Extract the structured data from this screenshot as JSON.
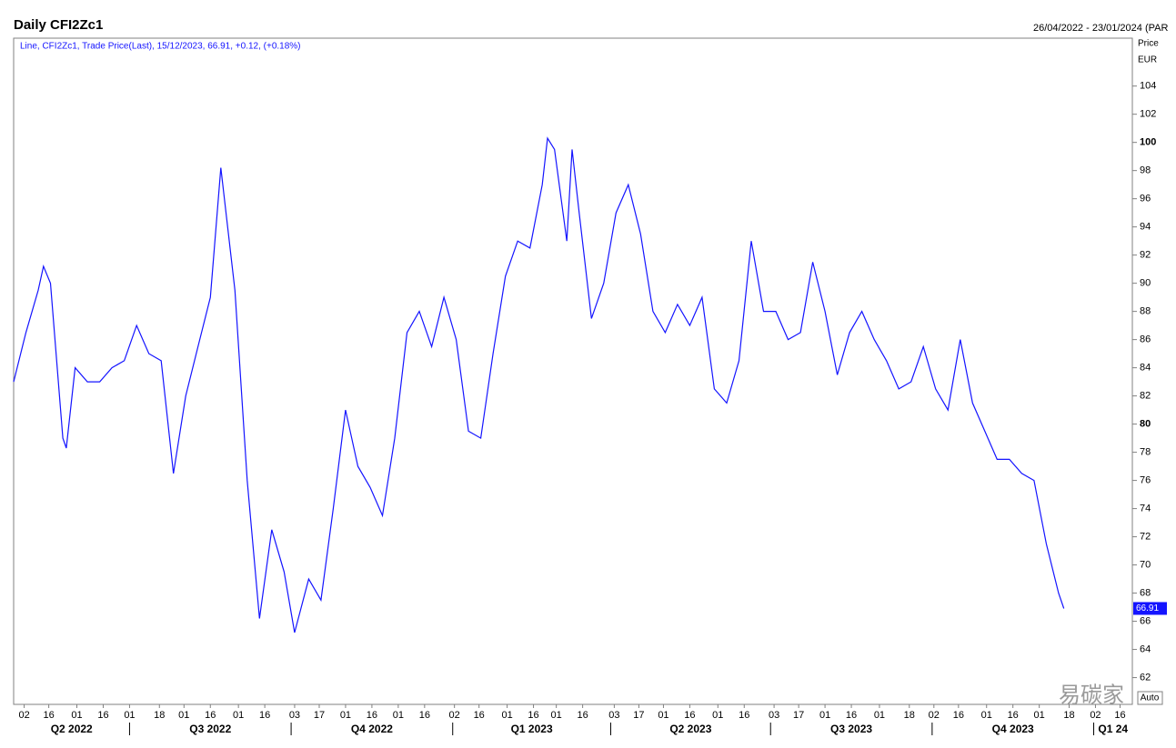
{
  "chart_data": {
    "type": "line",
    "title": "Daily CFI2Zc1",
    "date_range": "26/04/2022 - 23/01/2024 (PAR",
    "legend_text": "Line, CFI2Zc1, Trade Price(Last), 15/12/2023, 66.91, +0.12, (+0.18%)",
    "y_axis_label": "Price",
    "y_axis_unit": "EUR",
    "scale_mode": "Auto",
    "watermark": "易碳家",
    "last_value": 66.91,
    "x": [
      "2022-04-26",
      "2022-05-03",
      "2022-05-10",
      "2022-05-13",
      "2022-05-17",
      "2022-05-24",
      "2022-05-26",
      "2022-05-31",
      "2022-06-07",
      "2022-06-14",
      "2022-06-21",
      "2022-06-28",
      "2022-07-05",
      "2022-07-12",
      "2022-07-19",
      "2022-07-26",
      "2022-08-02",
      "2022-08-09",
      "2022-08-16",
      "2022-08-22",
      "2022-08-30",
      "2022-09-06",
      "2022-09-13",
      "2022-09-20",
      "2022-09-27",
      "2022-10-03",
      "2022-10-11",
      "2022-10-18",
      "2022-10-25",
      "2022-11-01",
      "2022-11-08",
      "2022-11-15",
      "2022-11-22",
      "2022-11-29",
      "2022-12-06",
      "2022-12-13",
      "2022-12-20",
      "2022-12-27",
      "2023-01-03",
      "2023-01-10",
      "2023-01-17",
      "2023-01-24",
      "2023-01-31",
      "2023-02-07",
      "2023-02-14",
      "2023-02-21",
      "2023-02-24",
      "2023-02-28",
      "2023-03-07",
      "2023-03-10",
      "2023-03-14",
      "2023-03-21",
      "2023-03-28",
      "2023-04-04",
      "2023-04-11",
      "2023-04-18",
      "2023-04-25",
      "2023-05-02",
      "2023-05-09",
      "2023-05-16",
      "2023-05-23",
      "2023-05-30",
      "2023-06-06",
      "2023-06-13",
      "2023-06-20",
      "2023-06-27",
      "2023-07-04",
      "2023-07-11",
      "2023-07-18",
      "2023-07-25",
      "2023-08-01",
      "2023-08-08",
      "2023-08-15",
      "2023-08-22",
      "2023-08-29",
      "2023-09-05",
      "2023-09-12",
      "2023-09-19",
      "2023-09-26",
      "2023-10-03",
      "2023-10-10",
      "2023-10-17",
      "2023-10-24",
      "2023-10-31",
      "2023-11-07",
      "2023-11-14",
      "2023-11-21",
      "2023-11-28",
      "2023-12-05",
      "2023-12-12",
      "2023-12-15"
    ],
    "series": [
      {
        "name": "CFI2Zc1",
        "color": "#1414ff",
        "values": [
          83,
          86.5,
          89.5,
          91.2,
          90,
          79,
          78.3,
          84,
          83,
          83,
          84,
          84.5,
          87,
          85,
          84.5,
          76.5,
          82,
          85.5,
          89,
          98.2,
          89.5,
          76,
          66.2,
          72.5,
          69.5,
          65.2,
          69,
          67.5,
          74,
          81,
          77,
          75.5,
          73.5,
          79,
          86.5,
          88,
          85.5,
          89,
          86,
          79.5,
          79,
          85,
          90.5,
          93,
          92.5,
          97,
          100.3,
          99.5,
          93,
          99.5,
          95,
          87.5,
          90,
          95,
          97,
          93.5,
          88,
          86.5,
          88.5,
          87,
          89,
          82.5,
          81.5,
          84.5,
          93,
          88,
          88,
          86,
          86.5,
          91.5,
          88,
          83.5,
          86.5,
          88,
          86,
          84.5,
          82.5,
          83,
          85.5,
          82.5,
          81,
          86,
          81.5,
          79.5,
          77.5,
          77.5,
          76.5,
          76,
          71.5,
          68,
          66.91
        ]
      }
    ],
    "xlim": [
      "2022-04-26",
      "2024-01-23"
    ],
    "xticks": [
      {
        "value": "2022-05-02",
        "label": "02"
      },
      {
        "value": "2022-05-16",
        "label": "16"
      },
      {
        "value": "2022-06-01",
        "label": "01"
      },
      {
        "value": "2022-06-16",
        "label": "16"
      },
      {
        "value": "2022-07-01",
        "label": "01"
      },
      {
        "value": "2022-07-18",
        "label": "18"
      },
      {
        "value": "2022-08-01",
        "label": "01"
      },
      {
        "value": "2022-08-16",
        "label": "16"
      },
      {
        "value": "2022-09-01",
        "label": "01"
      },
      {
        "value": "2022-09-16",
        "label": "16"
      },
      {
        "value": "2022-10-03",
        "label": "03"
      },
      {
        "value": "2022-10-17",
        "label": "17"
      },
      {
        "value": "2022-11-01",
        "label": "01"
      },
      {
        "value": "2022-11-16",
        "label": "16"
      },
      {
        "value": "2022-12-01",
        "label": "01"
      },
      {
        "value": "2022-12-16",
        "label": "16"
      },
      {
        "value": "2023-01-02",
        "label": "02"
      },
      {
        "value": "2023-01-16",
        "label": "16"
      },
      {
        "value": "2023-02-01",
        "label": "01"
      },
      {
        "value": "2023-02-16",
        "label": "16"
      },
      {
        "value": "2023-03-01",
        "label": "01"
      },
      {
        "value": "2023-03-16",
        "label": "16"
      },
      {
        "value": "2023-04-03",
        "label": "03"
      },
      {
        "value": "2023-04-17",
        "label": "17"
      },
      {
        "value": "2023-05-01",
        "label": "01"
      },
      {
        "value": "2023-05-16",
        "label": "16"
      },
      {
        "value": "2023-06-01",
        "label": "01"
      },
      {
        "value": "2023-06-16",
        "label": "16"
      },
      {
        "value": "2023-07-03",
        "label": "03"
      },
      {
        "value": "2023-07-17",
        "label": "17"
      },
      {
        "value": "2023-08-01",
        "label": "01"
      },
      {
        "value": "2023-08-16",
        "label": "16"
      },
      {
        "value": "2023-09-01",
        "label": "01"
      },
      {
        "value": "2023-09-18",
        "label": "18"
      },
      {
        "value": "2023-10-02",
        "label": "02"
      },
      {
        "value": "2023-10-16",
        "label": "16"
      },
      {
        "value": "2023-11-01",
        "label": "01"
      },
      {
        "value": "2023-11-16",
        "label": "16"
      },
      {
        "value": "2023-12-01",
        "label": "01"
      },
      {
        "value": "2023-12-18",
        "label": "18"
      },
      {
        "value": "2024-01-02",
        "label": "02"
      },
      {
        "value": "2024-01-16",
        "label": "16"
      }
    ],
    "quarters": [
      {
        "value": "2022-04-01",
        "label": "Q2 2022"
      },
      {
        "value": "2022-07-01",
        "label": "Q3 2022"
      },
      {
        "value": "2022-10-01",
        "label": "Q4 2022"
      },
      {
        "value": "2023-01-01",
        "label": "Q1 2023"
      },
      {
        "value": "2023-04-01",
        "label": "Q2 2023"
      },
      {
        "value": "2023-07-01",
        "label": "Q3 2023"
      },
      {
        "value": "2023-10-01",
        "label": "Q4 2023"
      },
      {
        "value": "2024-01-01",
        "label": "Q1 24"
      }
    ],
    "ylim": [
      60.1,
      107.4
    ],
    "yticks": [
      62,
      64,
      66,
      68,
      70,
      72,
      74,
      76,
      78,
      80,
      82,
      84,
      86,
      88,
      90,
      92,
      94,
      96,
      98,
      100,
      102,
      104
    ],
    "grid": false
  }
}
